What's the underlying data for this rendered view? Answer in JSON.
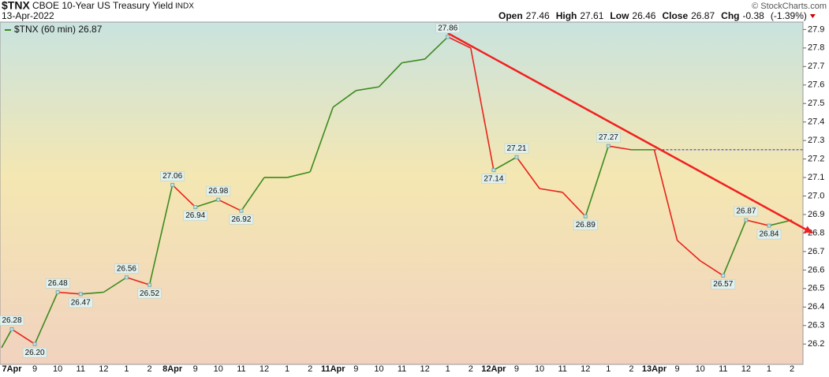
{
  "chart_data": {
    "type": "line",
    "symbol": "$TNX",
    "title": "CBOE 10-Year US Treasury Yield",
    "exchange": "INDX",
    "date": "13-Apr-2022",
    "credit": "© StockCharts.com",
    "quote": {
      "open_label": "Open",
      "open": "27.46",
      "high_label": "High",
      "high": "27.61",
      "low_label": "Low",
      "low": "26.46",
      "close_label": "Close",
      "close": "26.87",
      "chg_label": "Chg",
      "chg": "-0.38",
      "chg_pct": "(-1.39%)"
    },
    "legend": "$TNX (60 min) 26.87",
    "categories": [
      null,
      "7Apr",
      "9",
      "10",
      "11",
      "12",
      "1",
      "2",
      "8Apr",
      "9",
      "10",
      "11",
      "12",
      "1",
      "2",
      "11Apr",
      "9",
      "10",
      "11",
      "12",
      "1",
      "2",
      "12Apr",
      "9",
      "10",
      "11",
      "12",
      "1",
      "2",
      "13Apr",
      "9",
      "10",
      "11",
      "12",
      "1",
      "2"
    ],
    "values": [
      26.18,
      26.28,
      26.2,
      26.48,
      26.47,
      26.48,
      26.56,
      26.52,
      27.06,
      26.94,
      26.98,
      26.92,
      27.1,
      27.1,
      27.13,
      27.48,
      27.57,
      27.59,
      27.72,
      27.74,
      27.86,
      27.8,
      27.14,
      27.21,
      27.04,
      27.02,
      26.89,
      27.27,
      27.25,
      27.25,
      26.76,
      26.65,
      26.57,
      26.87,
      26.84,
      26.87
    ],
    "value_labels": [
      null,
      "26.28",
      "26.20",
      "26.48",
      "26.47",
      null,
      "26.56",
      "26.52",
      "27.06",
      "26.94",
      "26.98",
      "26.92",
      null,
      null,
      null,
      null,
      null,
      null,
      null,
      null,
      "27.86",
      null,
      "27.14",
      "27.21",
      null,
      null,
      "26.89",
      "27.27",
      null,
      null,
      null,
      null,
      "26.57",
      "26.87",
      "26.84",
      null
    ],
    "up_color": "#3b8a1f",
    "down_color": "#e8231c",
    "ylim": [
      26.09,
      27.94
    ],
    "yticks": [
      26.2,
      26.3,
      26.4,
      26.5,
      26.6,
      26.7,
      26.8,
      26.9,
      {
        "value": 27,
        "label": "27.0"
      },
      27.1,
      27.2,
      27.3,
      27.4,
      27.5,
      27.6,
      27.7,
      27.8,
      27.9
    ],
    "trend_line": {
      "x": [
        20,
        36.5
      ],
      "values": [
        27.88,
        26.8
      ],
      "color": "#f02020"
    },
    "level_line": {
      "x": [
        29,
        36.3
      ],
      "value": 27.25,
      "color": "#3030c0"
    }
  }
}
